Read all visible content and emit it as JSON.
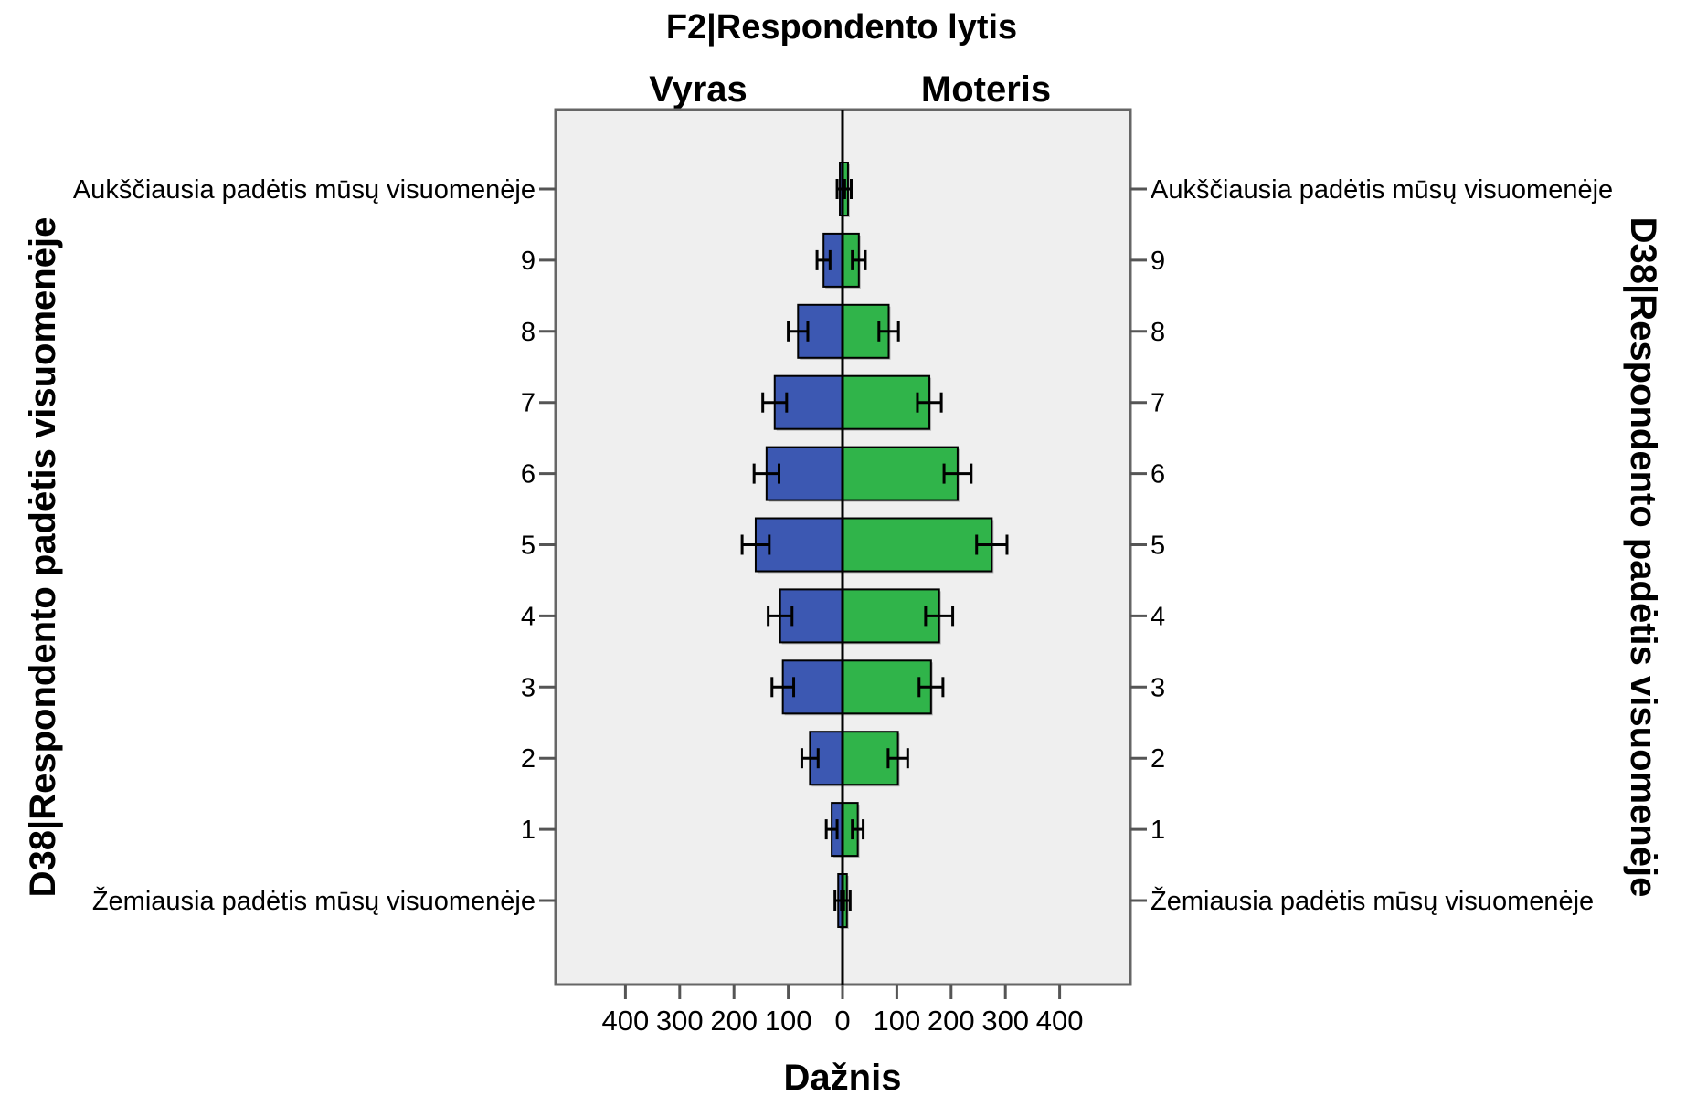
{
  "chart_data": {
    "type": "bar",
    "title": "F2|Respondento lytis",
    "xlabel": "Dažnis",
    "ylabel": "D38|Respondento padėtis visuomenėje",
    "orientation": "horizontal-population-pyramid",
    "xlim": [
      -450,
      450
    ],
    "xticks": [
      400,
      300,
      200,
      100,
      0,
      100,
      200,
      300,
      400
    ],
    "categories": [
      "Žemiausia padėtis mūsų visuomenėje",
      "1",
      "2",
      "3",
      "4",
      "5",
      "6",
      "7",
      "8",
      "9",
      "Aukščiausia padėtis mūsų visuomenėje"
    ],
    "series": [
      {
        "name": "Vyras",
        "color": "#3c58b2",
        "values": [
          8,
          20,
          60,
          110,
          115,
          160,
          140,
          125,
          82,
          35,
          5
        ],
        "error": [
          6,
          10,
          15,
          20,
          22,
          25,
          23,
          22,
          18,
          12,
          5
        ]
      },
      {
        "name": "Moteris",
        "color": "#30b44a",
        "values": [
          8,
          28,
          102,
          163,
          178,
          275,
          212,
          160,
          85,
          30,
          10
        ],
        "error": [
          6,
          10,
          18,
          22,
          25,
          28,
          25,
          22,
          18,
          12,
          6
        ]
      }
    ],
    "background": "#efefef",
    "grid": false
  }
}
